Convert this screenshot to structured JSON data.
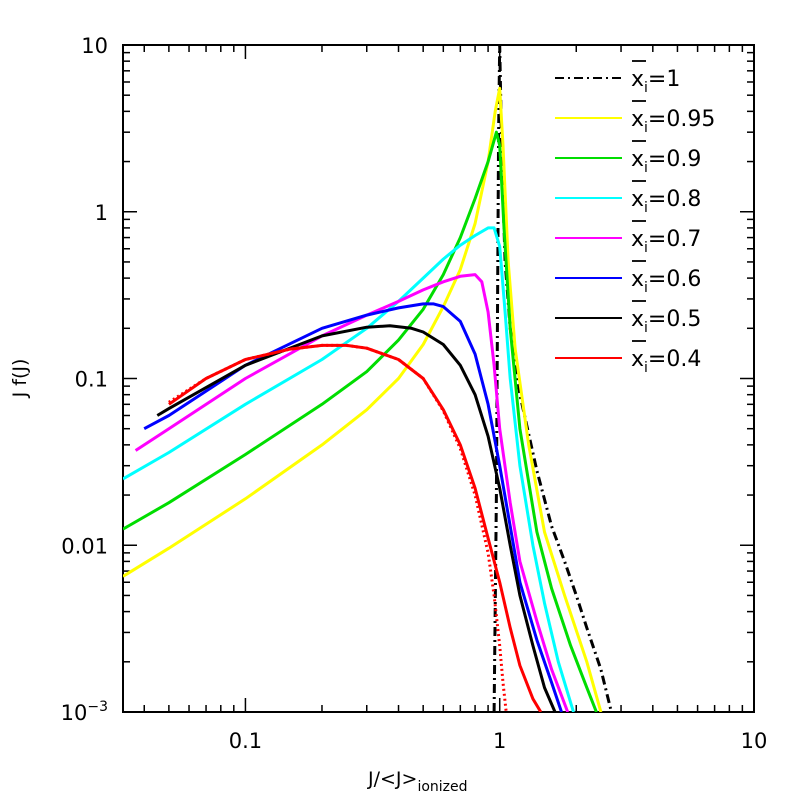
{
  "chart_data": {
    "type": "line",
    "x_scale": "log",
    "y_scale": "log",
    "xlim": [
      0.033,
      10
    ],
    "ylim": [
      0.001,
      10
    ],
    "xlabel": "J/<J>",
    "xlabel_sub": "ionized",
    "ylabel": "J f(J)",
    "x_ticks": [
      {
        "value": 0.1,
        "label": "0.1"
      },
      {
        "value": 1,
        "label": "1"
      },
      {
        "value": 10,
        "label": "10"
      }
    ],
    "y_ticks": [
      {
        "value": 10,
        "label": "10",
        "sup": ""
      },
      {
        "value": 1,
        "label": "1",
        "sup": ""
      },
      {
        "value": 0.1,
        "label": "0.1",
        "sup": ""
      },
      {
        "value": 0.01,
        "label": "0.01",
        "sup": ""
      },
      {
        "value": 0.001,
        "label": "10",
        "sup": "−3"
      }
    ],
    "legend_position": "top-right",
    "series": [
      {
        "name": "=1",
        "color": "#000000",
        "style": "dashdot",
        "points": [
          [
            0.95,
            0.001
          ],
          [
            0.97,
            0.02
          ],
          [
            0.99,
            3
          ],
          [
            1.0,
            10
          ],
          [
            1.02,
            2
          ],
          [
            1.05,
            0.5
          ],
          [
            1.1,
            0.2
          ],
          [
            1.2,
            0.08
          ],
          [
            1.4,
            0.028
          ],
          [
            1.6,
            0.013
          ],
          [
            1.8,
            0.008
          ],
          [
            2.0,
            0.005
          ],
          [
            2.2,
            0.0032
          ],
          [
            2.5,
            0.0018
          ],
          [
            2.75,
            0.001
          ]
        ]
      },
      {
        "name": "=0.95",
        "color": "#ffff00",
        "style": "solid",
        "points": [
          [
            0.033,
            0.0065
          ],
          [
            0.05,
            0.0096
          ],
          [
            0.1,
            0.019
          ],
          [
            0.2,
            0.04
          ],
          [
            0.3,
            0.065
          ],
          [
            0.4,
            0.1
          ],
          [
            0.5,
            0.16
          ],
          [
            0.6,
            0.27
          ],
          [
            0.7,
            0.45
          ],
          [
            0.8,
            0.85
          ],
          [
            0.9,
            2.0
          ],
          [
            0.96,
            4.0
          ],
          [
            1.0,
            5.5
          ],
          [
            1.03,
            2.5
          ],
          [
            1.08,
            0.5
          ],
          [
            1.15,
            0.15
          ],
          [
            1.3,
            0.04
          ],
          [
            1.5,
            0.012
          ],
          [
            1.8,
            0.005
          ],
          [
            2.2,
            0.002
          ],
          [
            2.5,
            0.001
          ]
        ]
      },
      {
        "name": "=0.9",
        "color": "#00dd00",
        "style": "solid",
        "points": [
          [
            0.033,
            0.0125
          ],
          [
            0.05,
            0.018
          ],
          [
            0.1,
            0.035
          ],
          [
            0.2,
            0.07
          ],
          [
            0.3,
            0.11
          ],
          [
            0.4,
            0.17
          ],
          [
            0.5,
            0.26
          ],
          [
            0.6,
            0.42
          ],
          [
            0.7,
            0.7
          ],
          [
            0.8,
            1.2
          ],
          [
            0.9,
            2.0
          ],
          [
            0.97,
            3.0
          ],
          [
            1.0,
            2.5
          ],
          [
            1.04,
            0.8
          ],
          [
            1.1,
            0.2
          ],
          [
            1.2,
            0.05
          ],
          [
            1.4,
            0.012
          ],
          [
            1.6,
            0.0055
          ],
          [
            1.9,
            0.0025
          ],
          [
            2.2,
            0.0014
          ],
          [
            2.4,
            0.001
          ]
        ]
      },
      {
        "name": "=0.8",
        "color": "#00ffff",
        "style": "solid",
        "points": [
          [
            0.033,
            0.025
          ],
          [
            0.05,
            0.036
          ],
          [
            0.1,
            0.07
          ],
          [
            0.2,
            0.13
          ],
          [
            0.3,
            0.2
          ],
          [
            0.4,
            0.29
          ],
          [
            0.5,
            0.4
          ],
          [
            0.6,
            0.52
          ],
          [
            0.7,
            0.63
          ],
          [
            0.8,
            0.72
          ],
          [
            0.9,
            0.8
          ],
          [
            0.95,
            0.8
          ],
          [
            1.0,
            0.62
          ],
          [
            1.05,
            0.25
          ],
          [
            1.1,
            0.1
          ],
          [
            1.2,
            0.03
          ],
          [
            1.35,
            0.01
          ],
          [
            1.5,
            0.0045
          ],
          [
            1.7,
            0.002
          ],
          [
            1.95,
            0.001
          ]
        ]
      },
      {
        "name": "=0.7",
        "color": "#ff00ff",
        "style": "solid",
        "points": [
          [
            0.037,
            0.037
          ],
          [
            0.05,
            0.05
          ],
          [
            0.1,
            0.1
          ],
          [
            0.2,
            0.18
          ],
          [
            0.3,
            0.24
          ],
          [
            0.4,
            0.29
          ],
          [
            0.5,
            0.34
          ],
          [
            0.6,
            0.38
          ],
          [
            0.7,
            0.41
          ],
          [
            0.8,
            0.42
          ],
          [
            0.85,
            0.38
          ],
          [
            0.9,
            0.25
          ],
          [
            0.95,
            0.12
          ],
          [
            1.0,
            0.05
          ],
          [
            1.1,
            0.018
          ],
          [
            1.2,
            0.008
          ],
          [
            1.4,
            0.0035
          ],
          [
            1.6,
            0.0018
          ],
          [
            1.85,
            0.001
          ]
        ]
      },
      {
        "name": "=0.6",
        "color": "#0000ff",
        "style": "solid",
        "points": [
          [
            0.04,
            0.05
          ],
          [
            0.05,
            0.06
          ],
          [
            0.1,
            0.12
          ],
          [
            0.2,
            0.2
          ],
          [
            0.3,
            0.24
          ],
          [
            0.4,
            0.265
          ],
          [
            0.5,
            0.28
          ],
          [
            0.55,
            0.28
          ],
          [
            0.6,
            0.27
          ],
          [
            0.7,
            0.22
          ],
          [
            0.8,
            0.14
          ],
          [
            0.9,
            0.07
          ],
          [
            1.0,
            0.03
          ],
          [
            1.1,
            0.013
          ],
          [
            1.2,
            0.006
          ],
          [
            1.4,
            0.0027
          ],
          [
            1.6,
            0.0015
          ],
          [
            1.75,
            0.001
          ]
        ]
      },
      {
        "name": "=0.5",
        "color": "#000000",
        "style": "solid",
        "points": [
          [
            0.045,
            0.06
          ],
          [
            0.05,
            0.066
          ],
          [
            0.1,
            0.12
          ],
          [
            0.2,
            0.18
          ],
          [
            0.3,
            0.203
          ],
          [
            0.37,
            0.207
          ],
          [
            0.45,
            0.2
          ],
          [
            0.5,
            0.19
          ],
          [
            0.6,
            0.16
          ],
          [
            0.7,
            0.12
          ],
          [
            0.8,
            0.08
          ],
          [
            0.9,
            0.045
          ],
          [
            1.0,
            0.022
          ],
          [
            1.1,
            0.01
          ],
          [
            1.2,
            0.005
          ],
          [
            1.35,
            0.0025
          ],
          [
            1.5,
            0.0014
          ],
          [
            1.65,
            0.001
          ]
        ]
      },
      {
        "name": "=0.4",
        "color": "#ff0000",
        "style": "solid",
        "points": [
          [
            0.05,
            0.07
          ],
          [
            0.07,
            0.1
          ],
          [
            0.1,
            0.13
          ],
          [
            0.15,
            0.15
          ],
          [
            0.2,
            0.158
          ],
          [
            0.25,
            0.158
          ],
          [
            0.3,
            0.152
          ],
          [
            0.4,
            0.13
          ],
          [
            0.5,
            0.1
          ],
          [
            0.6,
            0.065
          ],
          [
            0.7,
            0.04
          ],
          [
            0.8,
            0.022
          ],
          [
            0.9,
            0.011
          ],
          [
            1.0,
            0.006
          ],
          [
            1.1,
            0.0032
          ],
          [
            1.2,
            0.0019
          ],
          [
            1.35,
            0.0012
          ],
          [
            1.45,
            0.001
          ]
        ]
      },
      {
        "name": "",
        "color": "#ff0000",
        "style": "dotted",
        "in_legend": false,
        "points": [
          [
            0.05,
            0.072
          ],
          [
            0.07,
            0.1
          ],
          [
            0.1,
            0.13
          ],
          [
            0.15,
            0.15
          ],
          [
            0.2,
            0.158
          ],
          [
            0.25,
            0.158
          ],
          [
            0.3,
            0.152
          ],
          [
            0.4,
            0.13
          ],
          [
            0.5,
            0.1
          ],
          [
            0.6,
            0.064
          ],
          [
            0.7,
            0.038
          ],
          [
            0.8,
            0.02
          ],
          [
            0.9,
            0.009
          ],
          [
            0.95,
            0.005
          ],
          [
            1.0,
            0.0025
          ],
          [
            1.03,
            0.0015
          ],
          [
            1.06,
            0.001
          ]
        ]
      }
    ]
  }
}
